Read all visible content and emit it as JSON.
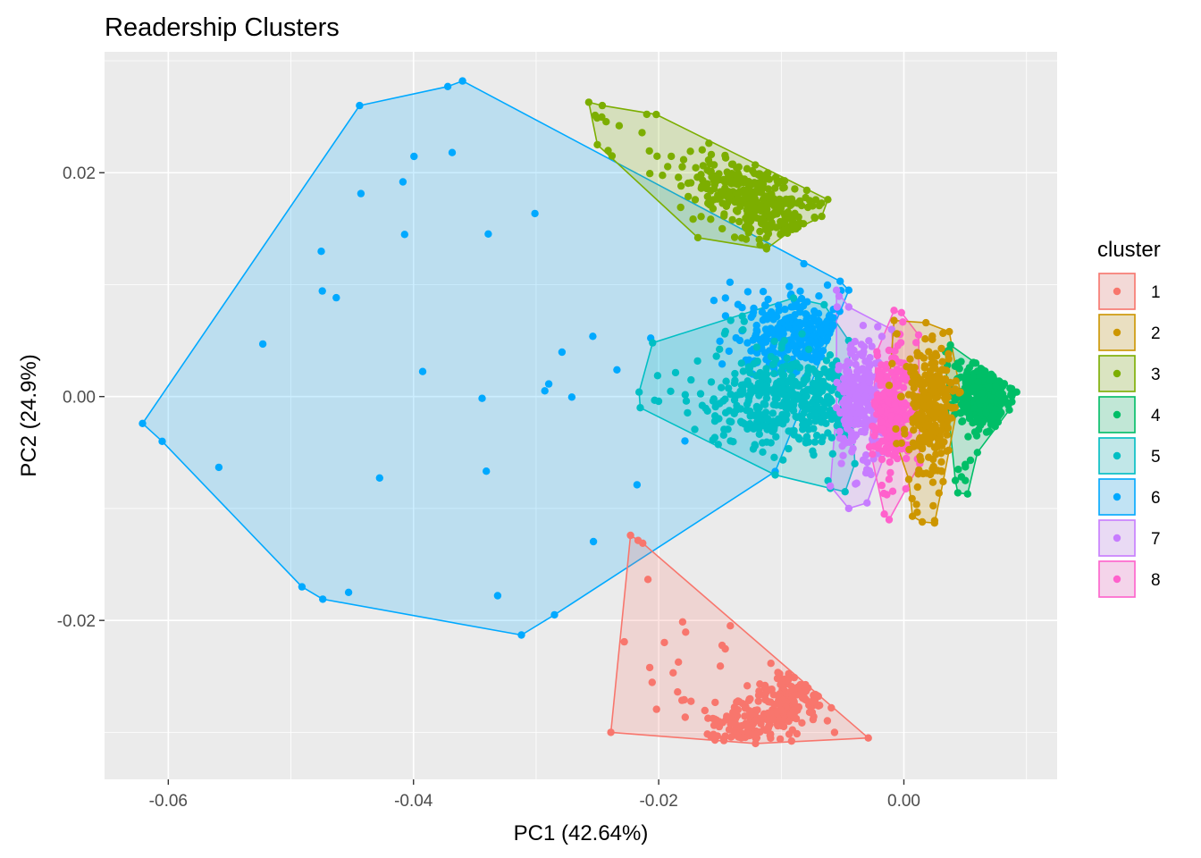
{
  "chart_data": {
    "type": "scatter",
    "title": "Readership Clusters",
    "xlabel": "PC1 (42.64%)",
    "ylabel": "PC2 (24.9%)",
    "xlim": [
      -0.0652,
      0.0125
    ],
    "ylim": [
      -0.0342,
      0.0308
    ],
    "x_ticks": [
      -0.06,
      -0.04,
      -0.02,
      0.0
    ],
    "x_tick_labels": [
      "-0.06",
      "-0.04",
      "-0.02",
      "0.00"
    ],
    "y_ticks": [
      -0.02,
      0.0,
      0.02
    ],
    "y_tick_labels": [
      "-0.02",
      "0.00",
      "0.02"
    ],
    "grid": true,
    "legend": {
      "title": "cluster",
      "position": "right"
    },
    "series": [
      {
        "name": "1",
        "color": "#F8766D",
        "hull": [
          [
            -0.0223,
            -0.0124
          ],
          [
            -0.0213,
            -0.0131
          ],
          [
            -0.0029,
            -0.0305
          ],
          [
            -0.0121,
            -0.031
          ],
          [
            -0.0239,
            -0.03
          ]
        ],
        "center": [
          -0.01,
          -0.0275
        ],
        "spread": [
          0.0035,
          0.0012
        ],
        "n": 260,
        "tilt": 0.55
      },
      {
        "name": "2",
        "color": "#CD9600",
        "hull": [
          [
            -0.0008,
            0.0068
          ],
          [
            0.0018,
            0.0066
          ],
          [
            0.0037,
            0.0058
          ],
          [
            0.0046,
            0.0004
          ],
          [
            0.0032,
            -0.0076
          ],
          [
            0.0025,
            -0.0113
          ],
          [
            0.0015,
            -0.0112
          ],
          [
            0.0007,
            -0.0107
          ],
          [
            0.0004,
            -0.0074
          ],
          [
            -0.0006,
            -0.0042
          ],
          [
            -0.0012,
            0.001
          ]
        ],
        "center": [
          0.0022,
          -0.0006
        ],
        "spread": [
          0.0009,
          0.0028
        ],
        "n": 260,
        "tilt": 0
      },
      {
        "name": "3",
        "color": "#7CAE00",
        "hull": [
          [
            -0.0257,
            0.0263
          ],
          [
            -0.0246,
            0.026
          ],
          [
            -0.0202,
            0.0252
          ],
          [
            -0.0062,
            0.0176
          ],
          [
            -0.0067,
            0.0161
          ],
          [
            -0.0095,
            0.0146
          ],
          [
            -0.0112,
            0.0132
          ],
          [
            -0.0168,
            0.0142
          ],
          [
            -0.025,
            0.0225
          ]
        ],
        "center": [
          -0.012,
          0.0175
        ],
        "spread": [
          0.003,
          0.0015
        ],
        "n": 300,
        "tilt": -0.5
      },
      {
        "name": "4",
        "color": "#00BE67",
        "hull": [
          [
            0.0038,
            0.0046
          ],
          [
            0.0088,
            0.0007
          ],
          [
            0.0092,
            0.0004
          ],
          [
            0.0086,
            -0.0012
          ],
          [
            0.006,
            -0.005
          ],
          [
            0.0052,
            -0.0087
          ],
          [
            0.0044,
            -0.0086
          ],
          [
            0.0042,
            -0.0075
          ],
          [
            0.0036,
            -0.001
          ],
          [
            0.0034,
            0.004
          ]
        ],
        "center": [
          0.0065,
          0.0
        ],
        "spread": [
          0.001,
          0.0015
        ],
        "n": 320,
        "tilt": 0
      },
      {
        "name": "5",
        "color": "#00BFC4",
        "hull": [
          [
            -0.0205,
            0.0048
          ],
          [
            -0.009,
            0.0088
          ],
          [
            -0.0065,
            0.0082
          ],
          [
            -0.0045,
            0.005
          ],
          [
            -0.004,
            -0.006
          ],
          [
            -0.0048,
            -0.0085
          ],
          [
            -0.006,
            -0.0082
          ],
          [
            -0.0105,
            -0.007
          ],
          [
            -0.0215,
            -0.001
          ],
          [
            -0.0216,
            0.0004
          ]
        ],
        "center": [
          -0.0095,
          -0.0005
        ],
        "spread": [
          0.0035,
          0.002
        ],
        "n": 380,
        "tilt": 0
      },
      {
        "name": "6",
        "color": "#00A9FF",
        "hull": [
          [
            -0.036,
            0.0282
          ],
          [
            -0.0372,
            0.0277
          ],
          [
            -0.0444,
            0.026
          ],
          [
            -0.0621,
            -0.0024
          ],
          [
            -0.0605,
            -0.004
          ],
          [
            -0.0491,
            -0.017
          ],
          [
            -0.0474,
            -0.0181
          ],
          [
            -0.0312,
            -0.0213
          ],
          [
            -0.0285,
            -0.0195
          ],
          [
            -0.0105,
            -0.0067
          ],
          [
            -0.0045,
            0.0095
          ],
          [
            -0.0052,
            0.0103
          ]
        ],
        "center": [
          -0.0085,
          0.0055
        ],
        "spread": [
          0.0025,
          0.0017
        ],
        "n": 280,
        "tilt": 0
      },
      {
        "name": "7",
        "color": "#C77CFF",
        "hull": [
          [
            -0.0055,
            0.0095
          ],
          [
            -0.0045,
            0.008
          ],
          [
            -0.001,
            0.006
          ],
          [
            -0.0005,
            -0.002
          ],
          [
            -0.003,
            -0.0095
          ],
          [
            -0.0045,
            -0.01
          ],
          [
            -0.006,
            -0.008
          ],
          [
            -0.0055,
            -0.001
          ]
        ],
        "center": [
          -0.0035,
          0.0
        ],
        "spread": [
          0.001,
          0.0025
        ],
        "n": 220,
        "tilt": 0
      },
      {
        "name": "8",
        "color": "#FF61CC",
        "hull": [
          [
            -0.0008,
            0.0077
          ],
          [
            -0.0002,
            0.0075
          ],
          [
            0.0012,
            0.0055
          ],
          [
            0.0013,
            -0.006
          ],
          [
            -0.0012,
            -0.011
          ],
          [
            -0.0016,
            -0.0105
          ],
          [
            -0.0028,
            -0.0045
          ],
          [
            -0.0022,
            0.004
          ]
        ],
        "center": [
          -0.001,
          -0.001
        ],
        "spread": [
          0.0008,
          0.0025
        ],
        "n": 240,
        "tilt": 0
      }
    ]
  }
}
